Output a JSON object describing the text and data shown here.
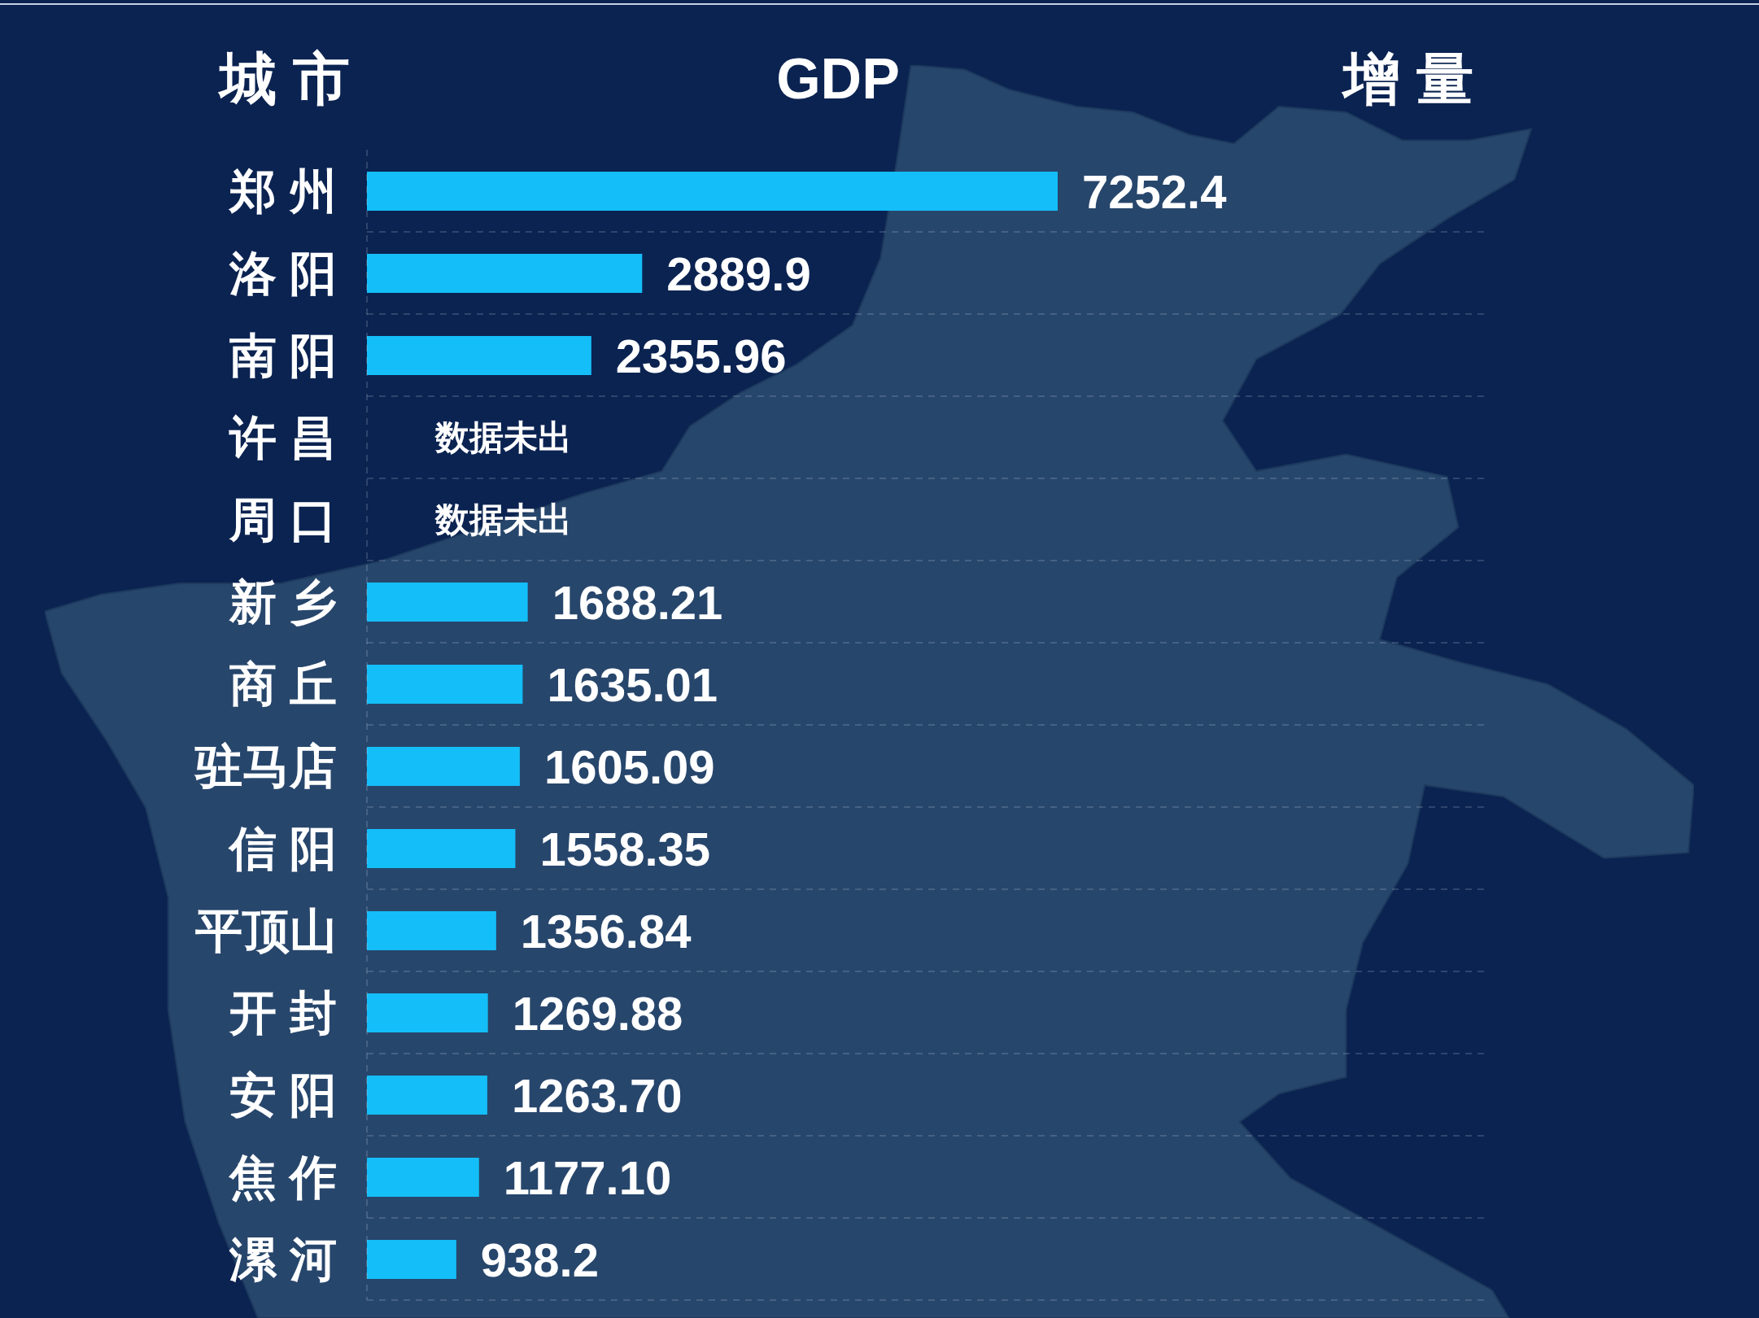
{
  "chart_data": {
    "type": "bar",
    "orientation": "horizontal",
    "xlabel": "GDP",
    "ylabel": "城 市",
    "annotations": [
      "增 量"
    ],
    "categories": [
      "郑 州",
      "洛 阳",
      "南 阳",
      "许 昌",
      "周 口",
      "新 乡",
      "商 丘",
      "驻马店",
      "信 阳",
      "平顶山",
      "开 封",
      "安 阳",
      "焦 作",
      "漯 河"
    ],
    "values": [
      7252.4,
      2889.9,
      2355.96,
      null,
      null,
      1688.21,
      1635.01,
      1605.09,
      1558.35,
      1356.84,
      1269.88,
      1263.7,
      1177.1,
      938.2
    ],
    "value_labels": [
      "7252.4",
      "2889.9",
      "2355.96",
      "数据未出",
      "数据未出",
      "1688.21",
      "1635.01",
      "1605.09",
      "1558.35",
      "1356.84",
      "1269.88",
      "1263.70",
      "1177.10",
      "938.2"
    ],
    "color": "#14bef8",
    "grid": "y",
    "tick_labels": "y"
  }
}
